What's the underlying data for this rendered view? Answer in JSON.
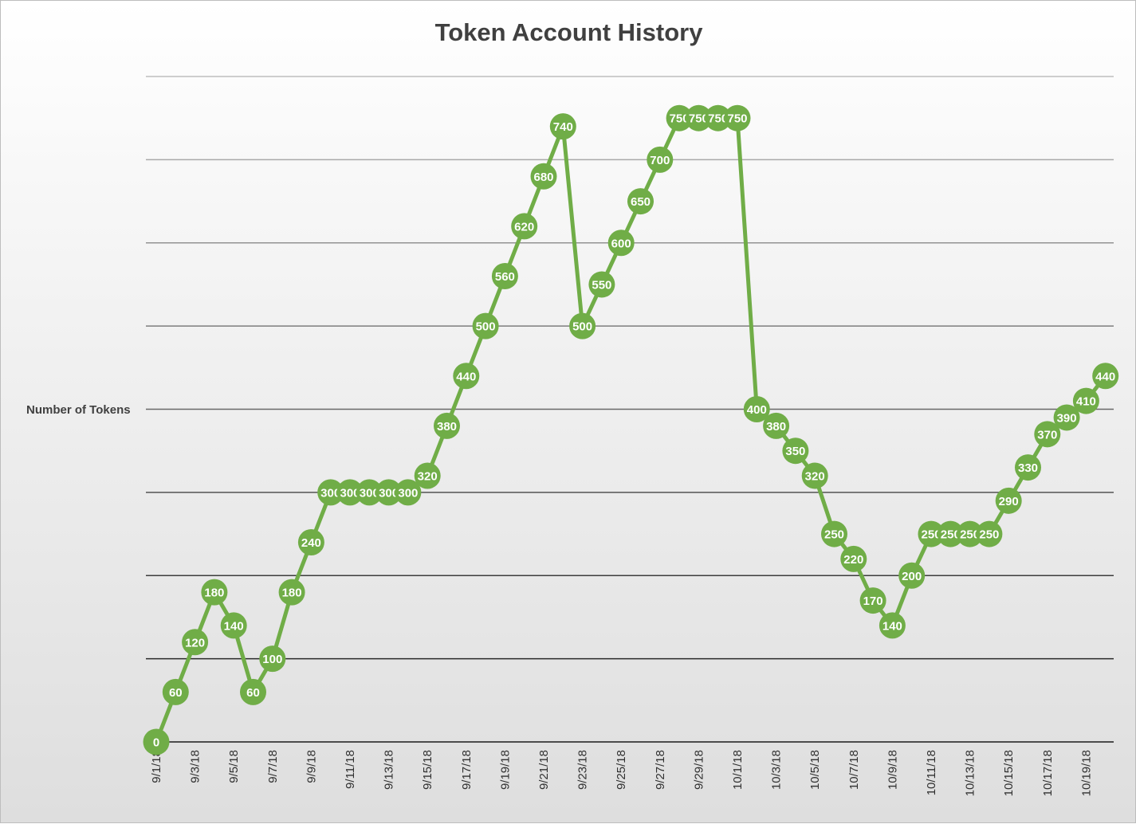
{
  "chart_data": {
    "type": "line",
    "title": "Token Account History",
    "ylabel": "Number of Tokens",
    "xlabel": "",
    "ylim": [
      0,
      800
    ],
    "grid": true,
    "series_color": "#70ad47",
    "x": [
      "9/1/18",
      "9/2/18",
      "9/3/18",
      "9/4/18",
      "9/5/18",
      "9/6/18",
      "9/7/18",
      "9/8/18",
      "9/9/18",
      "9/10/18",
      "9/11/18",
      "9/12/18",
      "9/13/18",
      "9/14/18",
      "9/15/18",
      "9/16/18",
      "9/17/18",
      "9/18/18",
      "9/19/18",
      "9/20/18",
      "9/21/18",
      "9/22/18",
      "9/23/18",
      "9/24/18",
      "9/25/18",
      "9/26/18",
      "9/27/18",
      "9/28/18",
      "9/29/18",
      "9/30/18",
      "10/1/18",
      "10/2/18",
      "10/3/18",
      "10/4/18",
      "10/5/18",
      "10/6/18",
      "10/7/18",
      "10/8/18",
      "10/9/18",
      "10/10/18",
      "10/11/18",
      "10/12/18",
      "10/13/18",
      "10/14/18",
      "10/15/18",
      "10/16/18",
      "10/17/18",
      "10/18/18",
      "10/19/18",
      "10/20/18"
    ],
    "x_tick_labels": [
      "9/1/18",
      "9/3/18",
      "9/5/18",
      "9/7/18",
      "9/9/18",
      "9/11/18",
      "9/13/18",
      "9/15/18",
      "9/17/18",
      "9/19/18",
      "9/21/18",
      "9/23/18",
      "9/25/18",
      "9/27/18",
      "9/29/18",
      "10/1/18",
      "10/3/18",
      "10/5/18",
      "10/7/18",
      "10/9/18",
      "10/11/18",
      "10/13/18",
      "10/15/18",
      "10/17/18",
      "10/19/18"
    ],
    "values": [
      0,
      60,
      120,
      180,
      140,
      60,
      100,
      180,
      240,
      300,
      300,
      300,
      300,
      300,
      320,
      380,
      440,
      500,
      560,
      620,
      680,
      740,
      500,
      550,
      600,
      650,
      700,
      750,
      750,
      750,
      750,
      400,
      380,
      350,
      320,
      250,
      220,
      170,
      140,
      200,
      250,
      250,
      250,
      250,
      290,
      330,
      370,
      390,
      410,
      440
    ]
  }
}
